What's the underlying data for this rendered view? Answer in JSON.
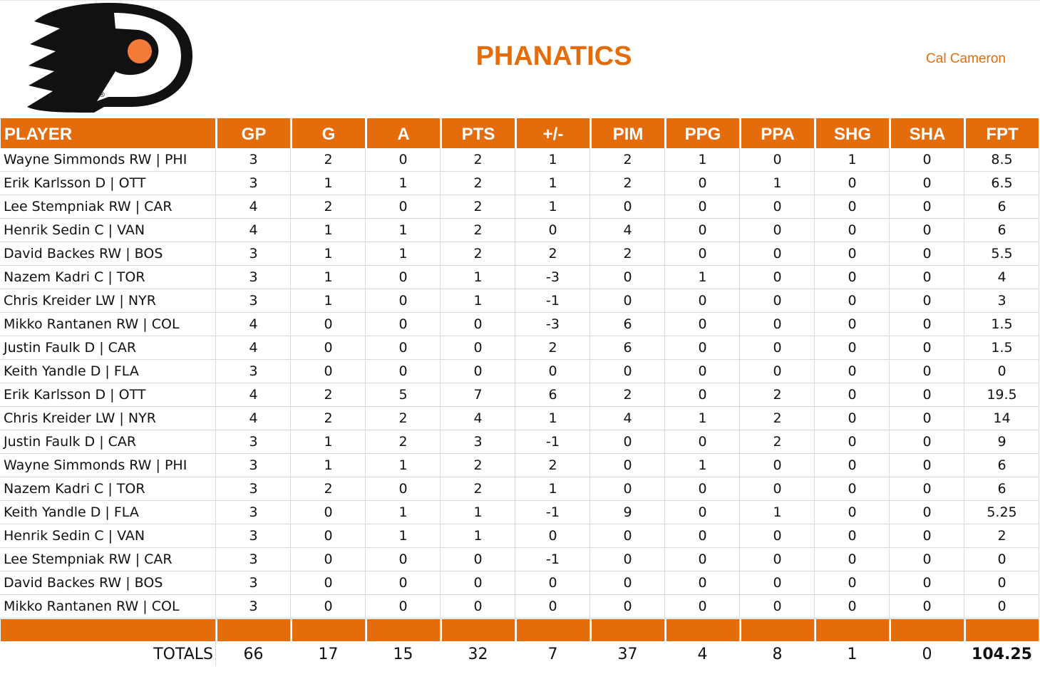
{
  "header": {
    "title": "PHANATICS",
    "owner": "Cal Cameron"
  },
  "table": {
    "columns": [
      "PLAYER",
      "GP",
      "G",
      "A",
      "PTS",
      "+/-",
      "PIM",
      "PPG",
      "PPA",
      "SHG",
      "SHA",
      "FPT"
    ],
    "rows": [
      [
        "Wayne Simmonds RW | PHI",
        "3",
        "2",
        "0",
        "2",
        "1",
        "2",
        "1",
        "0",
        "1",
        "0",
        "8.5"
      ],
      [
        "Erik Karlsson D | OTT",
        "3",
        "1",
        "1",
        "2",
        "1",
        "2",
        "0",
        "1",
        "0",
        "0",
        "6.5"
      ],
      [
        "Lee Stempniak RW | CAR",
        "4",
        "2",
        "0",
        "2",
        "1",
        "0",
        "0",
        "0",
        "0",
        "0",
        "6"
      ],
      [
        "Henrik Sedin C | VAN",
        "4",
        "1",
        "1",
        "2",
        "0",
        "4",
        "0",
        "0",
        "0",
        "0",
        "6"
      ],
      [
        "David Backes RW | BOS",
        "3",
        "1",
        "1",
        "2",
        "2",
        "2",
        "0",
        "0",
        "0",
        "0",
        "5.5"
      ],
      [
        "Nazem Kadri C | TOR",
        "3",
        "1",
        "0",
        "1",
        "-3",
        "0",
        "1",
        "0",
        "0",
        "0",
        "4"
      ],
      [
        "Chris Kreider LW | NYR",
        "3",
        "1",
        "0",
        "1",
        "-1",
        "0",
        "0",
        "0",
        "0",
        "0",
        "3"
      ],
      [
        "Mikko Rantanen RW | COL",
        "4",
        "0",
        "0",
        "0",
        "-3",
        "6",
        "0",
        "0",
        "0",
        "0",
        "1.5"
      ],
      [
        "Justin Faulk D | CAR",
        "4",
        "0",
        "0",
        "0",
        "2",
        "6",
        "0",
        "0",
        "0",
        "0",
        "1.5"
      ],
      [
        "Keith Yandle D | FLA",
        "3",
        "0",
        "0",
        "0",
        "0",
        "0",
        "0",
        "0",
        "0",
        "0",
        "0"
      ],
      [
        "Erik Karlsson D | OTT",
        "4",
        "2",
        "5",
        "7",
        "6",
        "2",
        "0",
        "2",
        "0",
        "0",
        "19.5"
      ],
      [
        "Chris Kreider LW | NYR",
        "4",
        "2",
        "2",
        "4",
        "1",
        "4",
        "1",
        "2",
        "0",
        "0",
        "14"
      ],
      [
        "Justin Faulk D | CAR",
        "3",
        "1",
        "2",
        "3",
        "-1",
        "0",
        "0",
        "2",
        "0",
        "0",
        "9"
      ],
      [
        "Wayne Simmonds RW | PHI",
        "3",
        "1",
        "1",
        "2",
        "2",
        "0",
        "1",
        "0",
        "0",
        "0",
        "6"
      ],
      [
        "Nazem Kadri C | TOR",
        "3",
        "2",
        "0",
        "2",
        "1",
        "0",
        "0",
        "0",
        "0",
        "0",
        "6"
      ],
      [
        "Keith Yandle D | FLA",
        "3",
        "0",
        "1",
        "1",
        "-1",
        "9",
        "0",
        "1",
        "0",
        "0",
        "5.25"
      ],
      [
        "Henrik Sedin C | VAN",
        "3",
        "0",
        "1",
        "1",
        "0",
        "0",
        "0",
        "0",
        "0",
        "0",
        "2"
      ],
      [
        "Lee Stempniak RW | CAR",
        "3",
        "0",
        "0",
        "0",
        "-1",
        "0",
        "0",
        "0",
        "0",
        "0",
        "0"
      ],
      [
        "David Backes RW | BOS",
        "3",
        "0",
        "0",
        "0",
        "0",
        "0",
        "0",
        "0",
        "0",
        "0",
        "0"
      ],
      [
        "Mikko Rantanen RW | COL",
        "3",
        "0",
        "0",
        "0",
        "0",
        "0",
        "0",
        "0",
        "0",
        "0",
        "0"
      ]
    ],
    "totals": [
      "TOTALS",
      "66",
      "17",
      "15",
      "32",
      "7",
      "37",
      "4",
      "8",
      "1",
      "0",
      "104.25"
    ]
  }
}
